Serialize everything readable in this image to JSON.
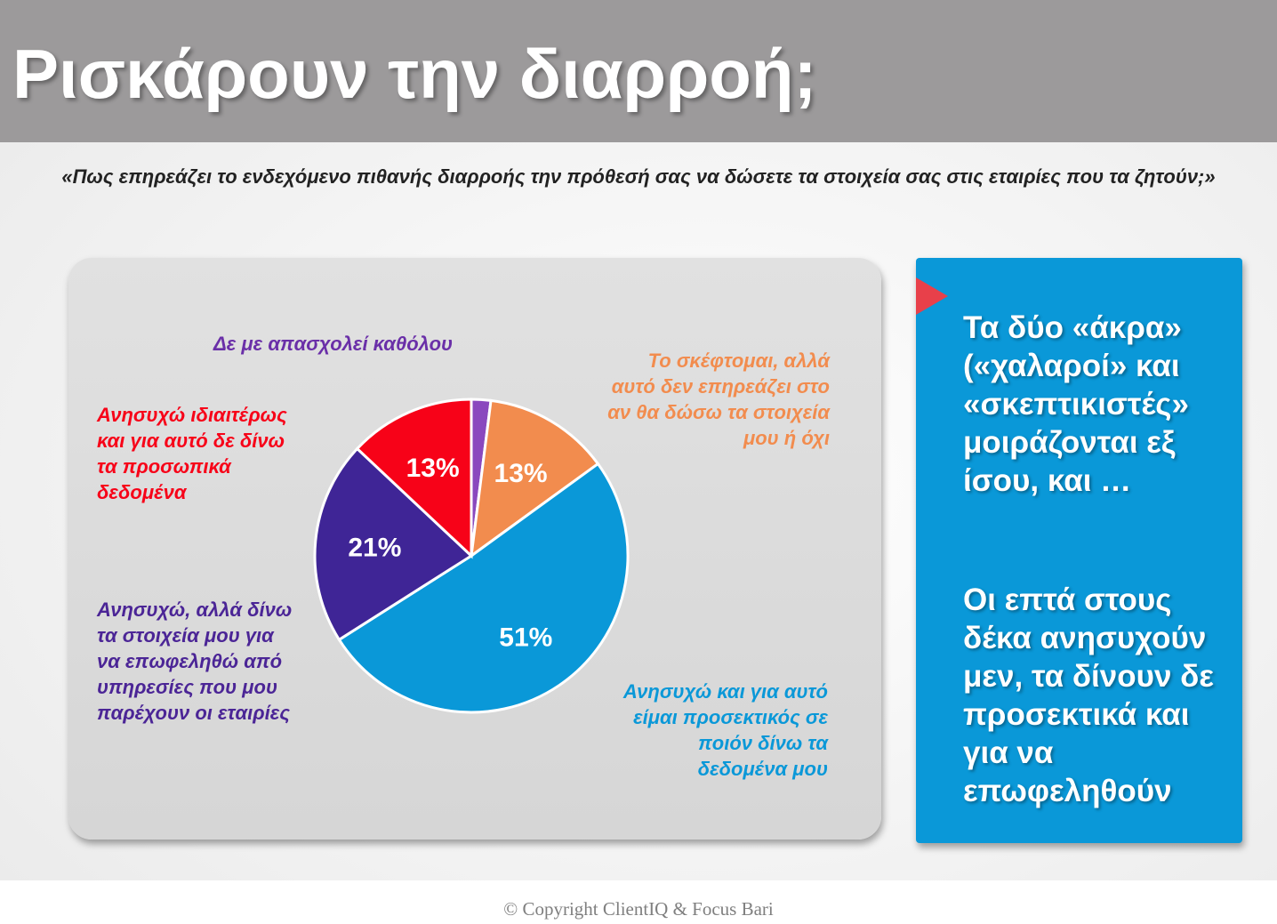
{
  "title": "Ρισκάρουν την διαρροή;",
  "question": "«Πως επηρεάζει  το ενδεχόμενο πιθανής διαρροής την πρόθεσή σας να δώσετε τα στοιχεία σας στις εταιρίες που τα ζητούν;»",
  "chart_data": {
    "type": "pie",
    "slices": [
      {
        "label": "Δε με απασχολεί καθόλου",
        "value": 2,
        "display": "",
        "color": "#8a48be"
      },
      {
        "label": "Το σκέφτομαι, αλλά αυτό δεν επηρεάζει στο αν θα δώσω τα στοιχεία μου ή όχι",
        "value": 13,
        "display": "13%",
        "color": "#f28c4e"
      },
      {
        "label": "Ανησυχώ και για αυτό είμαι προσεκτικός σε ποιόν δίνω τα δεδομένα μου",
        "value": 51,
        "display": "51%",
        "color": "#0a98d8"
      },
      {
        "label": "Ανησυχώ, αλλά δίνω τα στοιχεία μου για να επωφεληθώ από υπηρεσίες που μου παρέχουν οι εταιρίες",
        "value": 21,
        "display": "21%",
        "color": "#3f2596"
      },
      {
        "label": "Ανησυχώ ιδιαιτέρως και για αυτό δε δίνω τα προσωπικά δεδομένα",
        "value": 13,
        "display": "13%",
        "color": "#f70218"
      }
    ]
  },
  "category_labels": {
    "not_concerned": "Δε με απασχολεί καθόλου",
    "think_not_affect": "Το σκέφτομαι, αλλά\nαυτό δεν επηρεάζει στο\nαν θα δώσω τα στοιχεία\nμου ή όχι",
    "worried_careful": "Ανησυχώ και για αυτό\nείμαι προσεκτικός σε\nποιόν δίνω τα\nδεδομένα μου",
    "worried_give": "Ανησυχώ, αλλά δίνω\nτα στοιχεία μου για\nνα επωφεληθώ από\nυπηρεσίες που μου\nπαρέχουν οι εταιρίες",
    "worried_not_give": "Ανησυχώ ιδιαιτέρως\nκαι για αυτό δε δίνω\nτα προσωπικά\nδεδομένα"
  },
  "category_colors": {
    "not_concerned": "#6a2fa8",
    "think_not_affect": "#f28c4e",
    "worried_careful": "#0a98d8",
    "worried_give": "#4b2596",
    "worried_not_give": "#f70218"
  },
  "info_panel": {
    "paragraph_1": "Τα δύο «άκρα»\n(«χαλαροί» και\n«σκεπτικιστές»\nμοιράζονται εξ\nίσου, και …",
    "paragraph_2": "Οι επτά στους\nδέκα ανησυχούν\nμεν, τα δίνουν δε\nπροσεκτικά και\nγια να\nεπωφεληθούν"
  },
  "footer": "© Copyright ClientIQ & Focus Bari"
}
